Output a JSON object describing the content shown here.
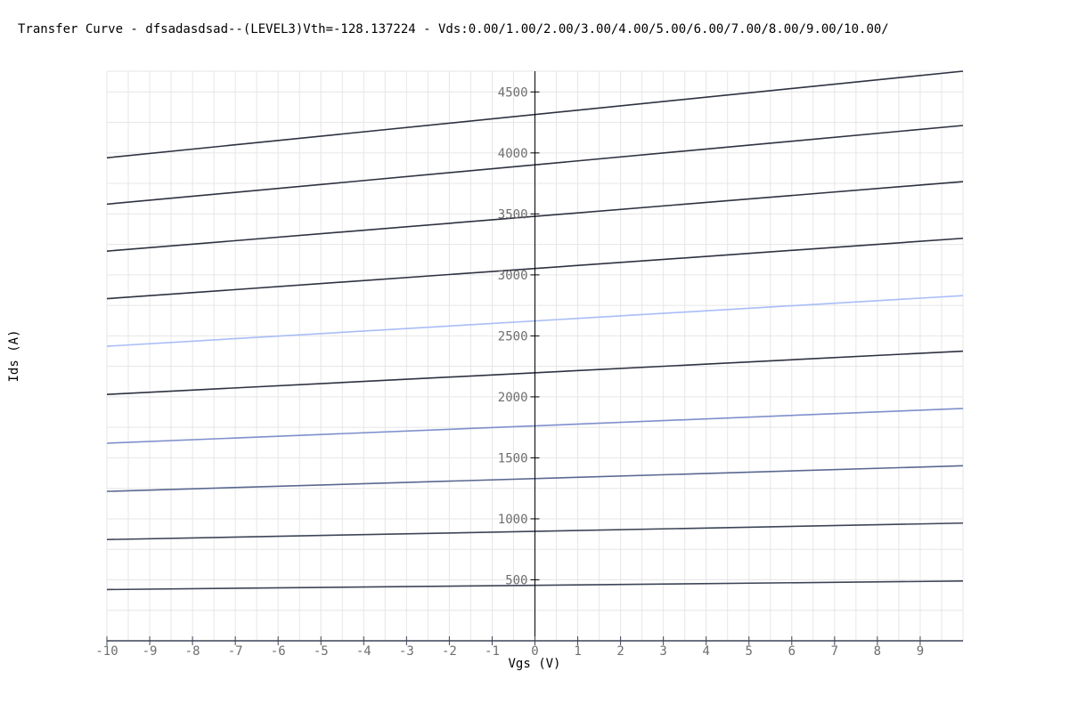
{
  "chart_data": {
    "type": "line",
    "title": "Transfer Curve - dfsadasdsad--(LEVEL3)Vth=-128.137224 - Vds:0.00/1.00/2.00/3.00/4.00/5.00/6.00/7.00/8.00/9.00/10.00/",
    "xlabel": "Vgs (V)",
    "ylabel": "Ids (A)",
    "xlim": [
      -10,
      10
    ],
    "ylim": [
      0,
      4670
    ],
    "x_ticks": [
      -10,
      -9,
      -8,
      -7,
      -6,
      -5,
      -4,
      -3,
      -2,
      -1,
      0,
      1,
      2,
      3,
      4,
      5,
      6,
      7,
      8,
      9
    ],
    "y_ticks": [
      500,
      1000,
      1500,
      2000,
      2500,
      3000,
      3500,
      4000,
      4500
    ],
    "grid": true,
    "legend": "none",
    "series": [
      {
        "x": [
          -10,
          10
        ],
        "values": [
          420,
          490
        ],
        "color": "#3c4456"
      },
      {
        "x": [
          -10,
          10
        ],
        "values": [
          830,
          965
        ],
        "color": "#3c4456"
      },
      {
        "x": [
          -10,
          10
        ],
        "values": [
          1225,
          1435
        ],
        "color": "#5a6890"
      },
      {
        "x": [
          -10,
          10
        ],
        "values": [
          1620,
          1905
        ],
        "color": "#7e8fcc"
      },
      {
        "x": [
          -10,
          10
        ],
        "values": [
          2020,
          2375
        ],
        "color": "#2e3140"
      },
      {
        "x": [
          -10,
          10
        ],
        "values": [
          2415,
          2830
        ],
        "color": "#a9bdf7"
      },
      {
        "x": [
          -10,
          10
        ],
        "values": [
          2805,
          3300
        ],
        "color": "#2e3140"
      },
      {
        "x": [
          -10,
          10
        ],
        "values": [
          3195,
          3765
        ],
        "color": "#2e3140"
      },
      {
        "x": [
          -10,
          10
        ],
        "values": [
          3580,
          4225
        ],
        "color": "#2e3140"
      },
      {
        "x": [
          -10,
          10
        ],
        "values": [
          3960,
          4670
        ],
        "color": "#2e3140"
      }
    ]
  },
  "colors": {
    "grid": "#e6e6e6",
    "axis": "#000000",
    "bottom_axis": "#3c4456",
    "tick_text": "#6e6e6e"
  }
}
